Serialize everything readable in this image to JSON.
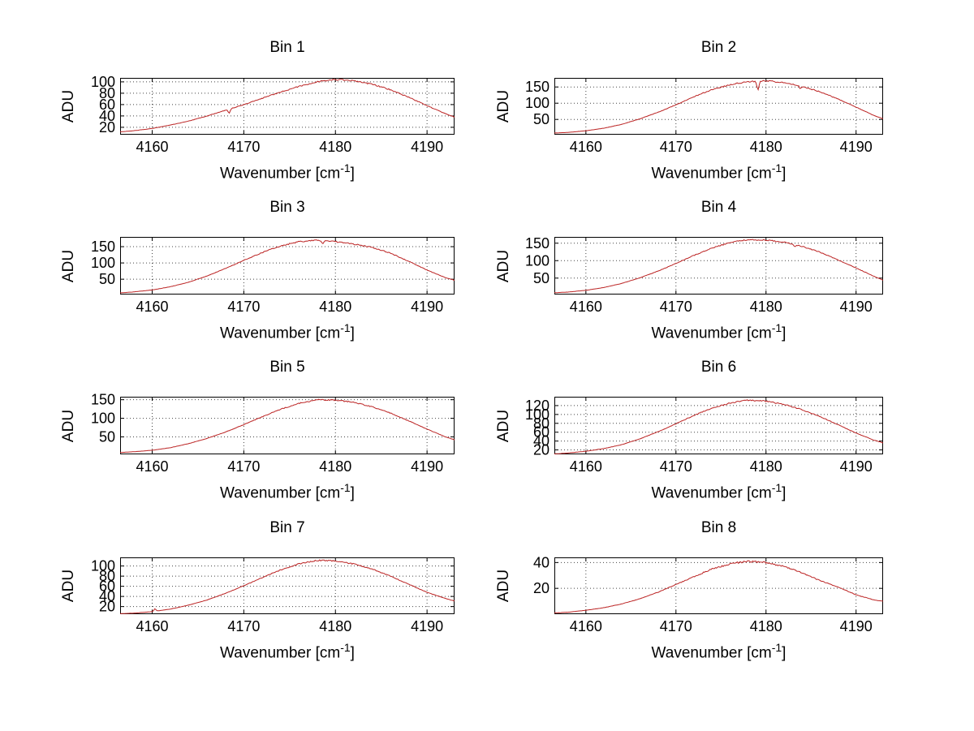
{
  "figure": {
    "background_color": "#ffffff",
    "curve_color": "#bb2222",
    "axis_color": "#000000",
    "grid_color": "#444444",
    "ylabel": "ADU",
    "xlabel_text": "Wavenumber [cm",
    "xlabel_sup": "-1",
    "xlabel_close": "]",
    "x_tick_labels": [
      "4160",
      "4170",
      "4180",
      "4190"
    ]
  },
  "chart_data": [
    {
      "type": "line",
      "title": "Bin 1",
      "xlabel": "Wavenumber [cm^-1]",
      "ylabel": "ADU",
      "xlim": [
        4156.5,
        4193
      ],
      "x_ticks": [
        4160,
        4170,
        4180,
        4190
      ],
      "ylim": [
        7,
        107
      ],
      "y_ticks": [
        20,
        40,
        60,
        80,
        100
      ],
      "x": [
        4156.5,
        4158,
        4160,
        4162,
        4164,
        4166,
        4168,
        4170,
        4172,
        4174,
        4176,
        4178,
        4180,
        4182,
        4184,
        4186,
        4188,
        4190,
        4192,
        4193
      ],
      "y": [
        12,
        14,
        18,
        24,
        31,
        40,
        50,
        60,
        71,
        82,
        92,
        100,
        104,
        102,
        96,
        86,
        73,
        58,
        44,
        38
      ],
      "noise": 1.3,
      "dips": [
        {
          "x": 4168.4,
          "depth": 7
        }
      ]
    },
    {
      "type": "line",
      "title": "Bin 2",
      "xlabel": "Wavenumber [cm^-1]",
      "ylabel": "ADU",
      "xlim": [
        4156.5,
        4193
      ],
      "x_ticks": [
        4160,
        4170,
        4180,
        4190
      ],
      "ylim": [
        3,
        178
      ],
      "y_ticks": [
        50,
        100,
        150
      ],
      "x": [
        4156.5,
        4158,
        4160,
        4162,
        4164,
        4166,
        4168,
        4170,
        4172,
        4174,
        4176,
        4178,
        4180,
        4182,
        4184,
        4186,
        4188,
        4190,
        4192,
        4193
      ],
      "y": [
        8,
        10,
        15,
        23,
        35,
        52,
        72,
        95,
        120,
        142,
        157,
        166,
        169,
        164,
        152,
        135,
        113,
        88,
        62,
        52
      ],
      "noise": 2.0,
      "dips": [
        {
          "x": 4179.1,
          "depth": 26
        },
        {
          "x": 4183.8,
          "depth": 8
        }
      ]
    },
    {
      "type": "line",
      "title": "Bin 3",
      "xlabel": "Wavenumber [cm^-1]",
      "ylabel": "ADU",
      "xlim": [
        4156.5,
        4193
      ],
      "x_ticks": [
        4160,
        4170,
        4180,
        4190
      ],
      "ylim": [
        3,
        180
      ],
      "y_ticks": [
        50,
        100,
        150
      ],
      "x": [
        4156.5,
        4158,
        4160,
        4162,
        4164,
        4166,
        4168,
        4170,
        4172,
        4174,
        4176,
        4178,
        4180,
        4182,
        4184,
        4186,
        4188,
        4190,
        4192,
        4193
      ],
      "y": [
        8,
        11,
        17,
        27,
        41,
        60,
        83,
        108,
        132,
        152,
        166,
        169,
        165,
        158,
        148,
        130,
        105,
        78,
        55,
        47
      ],
      "noise": 2.2,
      "dips": [
        {
          "x": 4178.6,
          "depth": 10
        }
      ]
    },
    {
      "type": "line",
      "title": "Bin 4",
      "xlabel": "Wavenumber [cm^-1]",
      "ylabel": "ADU",
      "xlim": [
        4156.5,
        4193
      ],
      "x_ticks": [
        4160,
        4170,
        4180,
        4190
      ],
      "ylim": [
        3,
        168
      ],
      "y_ticks": [
        50,
        100,
        150
      ],
      "x": [
        4156.5,
        4158,
        4160,
        4162,
        4164,
        4166,
        4168,
        4170,
        4172,
        4174,
        4176,
        4178,
        4180,
        4182,
        4184,
        4186,
        4188,
        4190,
        4192,
        4193
      ],
      "y": [
        8,
        10,
        15,
        23,
        35,
        51,
        70,
        92,
        115,
        136,
        152,
        160,
        159,
        153,
        141,
        124,
        102,
        79,
        55,
        44
      ],
      "noise": 1.8,
      "dips": [
        {
          "x": 4183.2,
          "depth": 6
        }
      ]
    },
    {
      "type": "line",
      "title": "Bin 5",
      "xlabel": "Wavenumber [cm^-1]",
      "ylabel": "ADU",
      "xlim": [
        4156.5,
        4193
      ],
      "x_ticks": [
        4160,
        4170,
        4180,
        4190
      ],
      "ylim": [
        3,
        158
      ],
      "y_ticks": [
        50,
        100,
        150
      ],
      "x": [
        4156.5,
        4158,
        4160,
        4162,
        4164,
        4166,
        4168,
        4170,
        4172,
        4174,
        4176,
        4178,
        4180,
        4182,
        4184,
        4186,
        4188,
        4190,
        4192,
        4193
      ],
      "y": [
        8,
        10,
        14,
        21,
        32,
        46,
        63,
        83,
        104,
        124,
        140,
        150,
        149,
        143,
        131,
        114,
        93,
        71,
        50,
        42
      ],
      "noise": 1.6,
      "dips": []
    },
    {
      "type": "line",
      "title": "Bin 6",
      "xlabel": "Wavenumber [cm^-1]",
      "ylabel": "ADU",
      "xlim": [
        4156.5,
        4193
      ],
      "x_ticks": [
        4160,
        4170,
        4180,
        4190
      ],
      "ylim": [
        10,
        140
      ],
      "y_ticks": [
        20,
        40,
        60,
        80,
        100,
        120
      ],
      "x": [
        4156.5,
        4158,
        4160,
        4162,
        4164,
        4166,
        4168,
        4170,
        4172,
        4174,
        4176,
        4178,
        4180,
        4182,
        4184,
        4186,
        4188,
        4190,
        4192,
        4193
      ],
      "y": [
        11,
        13,
        17,
        23,
        32,
        45,
        61,
        79,
        98,
        114,
        126,
        132,
        130,
        123,
        111,
        95,
        77,
        58,
        42,
        36
      ],
      "noise": 1.5,
      "dips": []
    },
    {
      "type": "line",
      "title": "Bin 7",
      "xlabel": "Wavenumber [cm^-1]",
      "ylabel": "ADU",
      "xlim": [
        4156.5,
        4193
      ],
      "x_ticks": [
        4160,
        4170,
        4180,
        4190
      ],
      "ylim": [
        5,
        117
      ],
      "y_ticks": [
        20,
        40,
        60,
        80,
        100
      ],
      "x": [
        4156.5,
        4158,
        4160,
        4162,
        4164,
        4166,
        4168,
        4170,
        4172,
        4174,
        4176,
        4178,
        4180,
        4182,
        4184,
        4186,
        4188,
        4190,
        4192,
        4193
      ],
      "y": [
        6,
        7,
        10,
        15,
        23,
        33,
        46,
        61,
        77,
        92,
        104,
        111,
        110,
        104,
        94,
        80,
        64,
        48,
        36,
        31
      ],
      "noise": 1.2,
      "dips": [
        {
          "x": 4160.3,
          "depth": -5
        }
      ]
    },
    {
      "type": "line",
      "title": "Bin 8",
      "xlabel": "Wavenumber [cm^-1]",
      "ylabel": "ADU",
      "xlim": [
        4156.5,
        4193
      ],
      "x_ticks": [
        4160,
        4170,
        4180,
        4190
      ],
      "ylim": [
        0,
        44
      ],
      "y_ticks": [
        20,
        40
      ],
      "x": [
        4156.5,
        4158,
        4160,
        4162,
        4164,
        4166,
        4168,
        4170,
        4172,
        4174,
        4176,
        4178,
        4180,
        4182,
        4184,
        4186,
        4188,
        4190,
        4192,
        4193
      ],
      "y": [
        1,
        1.5,
        3,
        5,
        8,
        12,
        17,
        23,
        29,
        35,
        39,
        41,
        40,
        37,
        32,
        26,
        21,
        15,
        11,
        10
      ],
      "noise": 0.7,
      "dips": []
    }
  ]
}
